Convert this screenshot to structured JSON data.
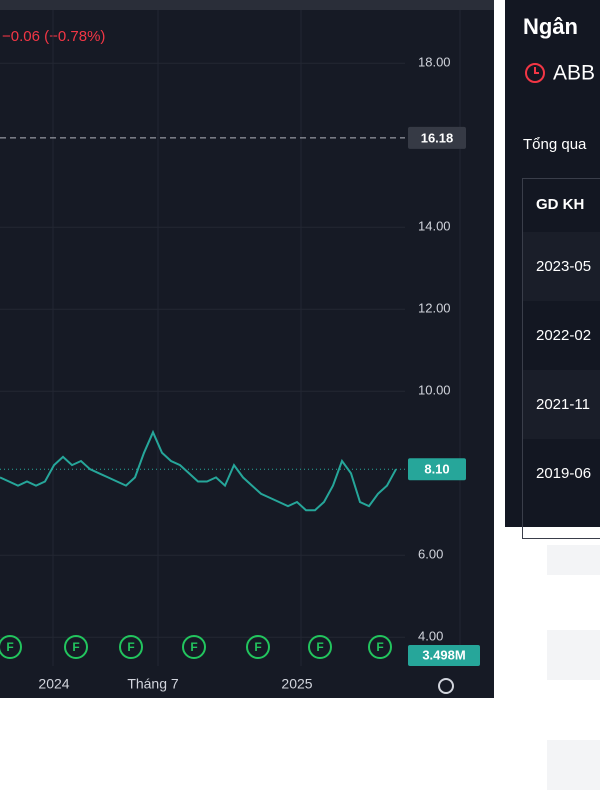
{
  "chart_data": {
    "type": "line",
    "change_label": "−0.06 (−0.78%)",
    "categories": [
      null,
      null,
      null,
      null,
      null,
      null,
      "2024",
      null,
      null,
      null,
      null,
      null,
      null,
      null,
      null,
      null,
      null,
      "Tháng 7",
      null,
      null,
      null,
      null,
      null,
      null,
      null,
      null,
      null,
      null,
      null,
      null,
      null,
      null,
      null,
      "2025",
      null,
      null,
      null,
      null,
      null,
      null,
      null,
      null,
      null,
      null,
      null
    ],
    "series": [
      {
        "color": "#26a69a",
        "values": [
          7.9,
          7.8,
          7.7,
          7.8,
          7.7,
          7.8,
          8.2,
          8.4,
          8.2,
          8.3,
          8.1,
          8.0,
          7.9,
          7.8,
          7.7,
          7.9,
          8.5,
          9.0,
          8.5,
          8.3,
          8.2,
          8.0,
          7.8,
          7.8,
          7.9,
          7.7,
          8.2,
          7.9,
          7.7,
          7.5,
          7.4,
          7.3,
          7.2,
          7.3,
          7.1,
          7.1,
          7.3,
          7.7,
          8.3,
          8.0,
          7.3,
          7.2,
          7.5,
          7.7,
          8.1
        ]
      }
    ],
    "ylim": [
      3.3,
      19.3
    ],
    "yticks": [
      {
        "value": 18,
        "label": "18.00"
      },
      {
        "value": 14,
        "label": "14.00"
      },
      {
        "value": 12,
        "label": "12.00"
      },
      {
        "value": 10,
        "label": "10.00"
      },
      {
        "value": 6,
        "label": "6.00"
      },
      {
        "value": 4,
        "label": "4.00"
      }
    ],
    "price_lines": [
      {
        "value": 16.18,
        "label": "16.18"
      },
      {
        "value": 8.1,
        "label": "8.10"
      }
    ],
    "volume_label": "3.498M",
    "markers": [
      "F",
      "F",
      "F",
      "F",
      "F",
      "F",
      "F"
    ]
  },
  "panel": {
    "title": "Ngân",
    "ticker": "ABB",
    "tab": "Tổng qua",
    "table": {
      "header": "GD KH",
      "rows": [
        "2023-05",
        "2022-02",
        "2021-11",
        "2019-06"
      ]
    }
  }
}
